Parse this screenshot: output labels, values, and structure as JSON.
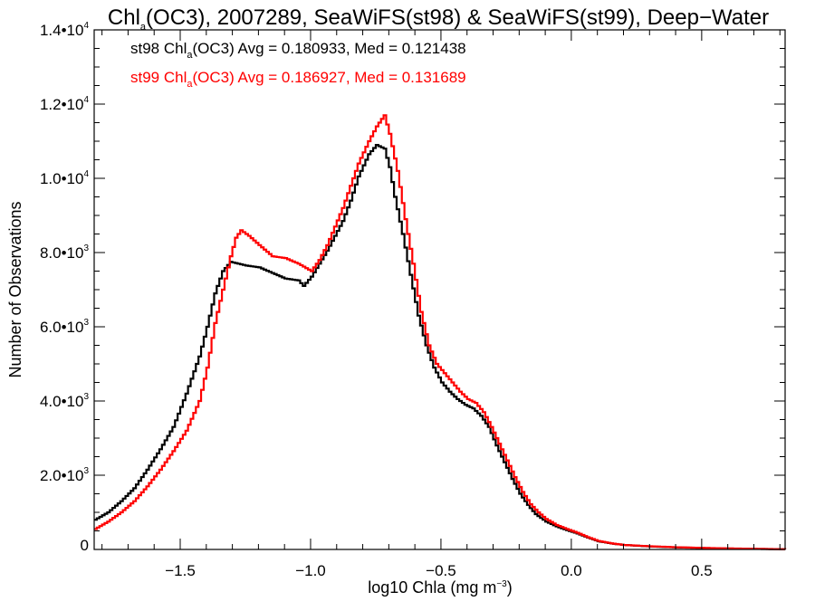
{
  "title": {
    "prefix": "Chl",
    "sub": "a",
    "rest": "(OC3), 2007289, SeaWiFS(st98) & SeaWiFS(st99), Deep−Water"
  },
  "colors": {
    "st98": "#000000",
    "st99": "#ff0000",
    "axis": "#000000",
    "background": "#ffffff"
  },
  "chart_data": {
    "type": "line",
    "step": true,
    "title": "Chla(OC3), 2007289, SeaWiFS(st98) & SeaWiFS(st99), Deep−Water",
    "xlabel": "log10 Chla (mg m⁻³)",
    "xlabel_parts": {
      "base": "log10 Chla (mg m",
      "sup": "−3",
      "close": ")"
    },
    "ylabel": "Number of Observations",
    "xlim": [
      -1.83,
      0.82
    ],
    "ylim": [
      0,
      14000
    ],
    "x_ticks": [
      {
        "value": -1.5,
        "label": "−1.5"
      },
      {
        "value": -1.0,
        "label": "−1.0"
      },
      {
        "value": -0.5,
        "label": "−0.5"
      },
      {
        "value": 0.0,
        "label": "0.0"
      },
      {
        "value": 0.5,
        "label": "0.5"
      }
    ],
    "x_minor_step": 0.1,
    "y_ticks": [
      {
        "value": 0,
        "mantissa": "0",
        "exp": ""
      },
      {
        "value": 2000,
        "mantissa": "2.0•10",
        "exp": "3"
      },
      {
        "value": 4000,
        "mantissa": "4.0•10",
        "exp": "3"
      },
      {
        "value": 6000,
        "mantissa": "6.0•10",
        "exp": "3"
      },
      {
        "value": 8000,
        "mantissa": "8.0•10",
        "exp": "3"
      },
      {
        "value": 10000,
        "mantissa": "1.0•10",
        "exp": "4"
      },
      {
        "value": 12000,
        "mantissa": "1.2•10",
        "exp": "4"
      },
      {
        "value": 14000,
        "mantissa": "1.4•10",
        "exp": "4"
      }
    ],
    "y_minor_step": 500,
    "grid": false,
    "series": [
      {
        "name": "st98",
        "color": "#000000",
        "label": {
          "pre": "st98 Chl",
          "sub": "a",
          "post": "(OC3) Avg = 0.180933, Med = 0.121438"
        },
        "avg": 0.180933,
        "median": 0.121438,
        "points": [
          [
            -1.83,
            800
          ],
          [
            -1.78,
            1000
          ],
          [
            -1.73,
            1300
          ],
          [
            -1.68,
            1650
          ],
          [
            -1.63,
            2150
          ],
          [
            -1.58,
            2700
          ],
          [
            -1.53,
            3300
          ],
          [
            -1.48,
            4200
          ],
          [
            -1.43,
            5200
          ],
          [
            -1.4,
            6000
          ],
          [
            -1.37,
            6900
          ],
          [
            -1.34,
            7500
          ],
          [
            -1.31,
            7750
          ],
          [
            -1.28,
            7700
          ],
          [
            -1.25,
            7650
          ],
          [
            -1.2,
            7600
          ],
          [
            -1.15,
            7450
          ],
          [
            -1.1,
            7300
          ],
          [
            -1.05,
            7250
          ],
          [
            -1.03,
            7100
          ],
          [
            -1.0,
            7350
          ],
          [
            -0.97,
            7700
          ],
          [
            -0.94,
            8050
          ],
          [
            -0.91,
            8450
          ],
          [
            -0.88,
            8850
          ],
          [
            -0.85,
            9400
          ],
          [
            -0.82,
            10050
          ],
          [
            -0.78,
            10650
          ],
          [
            -0.75,
            10900
          ],
          [
            -0.72,
            10800
          ],
          [
            -0.7,
            10300
          ],
          [
            -0.68,
            9500
          ],
          [
            -0.65,
            8500
          ],
          [
            -0.62,
            7400
          ],
          [
            -0.59,
            6300
          ],
          [
            -0.56,
            5500
          ],
          [
            -0.53,
            4900
          ],
          [
            -0.5,
            4500
          ],
          [
            -0.47,
            4250
          ],
          [
            -0.44,
            4050
          ],
          [
            -0.41,
            3900
          ],
          [
            -0.38,
            3800
          ],
          [
            -0.35,
            3600
          ],
          [
            -0.32,
            3300
          ],
          [
            -0.29,
            2800
          ],
          [
            -0.26,
            2350
          ],
          [
            -0.23,
            1900
          ],
          [
            -0.2,
            1500
          ],
          [
            -0.17,
            1200
          ],
          [
            -0.14,
            950
          ],
          [
            -0.1,
            750
          ],
          [
            -0.06,
            620
          ],
          [
            -0.02,
            520
          ],
          [
            0.02,
            430
          ],
          [
            0.06,
            320
          ],
          [
            0.1,
            220
          ],
          [
            0.15,
            160
          ],
          [
            0.2,
            120
          ],
          [
            0.3,
            80
          ],
          [
            0.4,
            55
          ],
          [
            0.5,
            40
          ],
          [
            0.6,
            25
          ],
          [
            0.7,
            15
          ],
          [
            0.82,
            5
          ]
        ]
      },
      {
        "name": "st99",
        "color": "#ff0000",
        "label": {
          "pre": "st99 Chl",
          "sub": "a",
          "post": "(OC3) Avg = 0.186927, Med = 0.131689"
        },
        "avg": 0.186927,
        "median": 0.131689,
        "points": [
          [
            -1.83,
            550
          ],
          [
            -1.78,
            750
          ],
          [
            -1.73,
            1000
          ],
          [
            -1.68,
            1300
          ],
          [
            -1.63,
            1700
          ],
          [
            -1.58,
            2150
          ],
          [
            -1.53,
            2650
          ],
          [
            -1.48,
            3200
          ],
          [
            -1.43,
            4000
          ],
          [
            -1.4,
            4900
          ],
          [
            -1.37,
            6100
          ],
          [
            -1.34,
            7000
          ],
          [
            -1.31,
            7900
          ],
          [
            -1.29,
            8400
          ],
          [
            -1.27,
            8600
          ],
          [
            -1.24,
            8450
          ],
          [
            -1.2,
            8200
          ],
          [
            -1.15,
            7900
          ],
          [
            -1.1,
            7850
          ],
          [
            -1.05,
            7700
          ],
          [
            -1.0,
            7500
          ],
          [
            -0.97,
            7800
          ],
          [
            -0.94,
            8200
          ],
          [
            -0.91,
            8700
          ],
          [
            -0.88,
            9200
          ],
          [
            -0.85,
            9800
          ],
          [
            -0.82,
            10400
          ],
          [
            -0.78,
            11000
          ],
          [
            -0.75,
            11400
          ],
          [
            -0.72,
            11700
          ],
          [
            -0.7,
            11200
          ],
          [
            -0.67,
            10200
          ],
          [
            -0.64,
            8900
          ],
          [
            -0.61,
            7700
          ],
          [
            -0.58,
            6400
          ],
          [
            -0.55,
            5500
          ],
          [
            -0.52,
            5000
          ],
          [
            -0.49,
            4750
          ],
          [
            -0.46,
            4500
          ],
          [
            -0.43,
            4250
          ],
          [
            -0.4,
            4050
          ],
          [
            -0.37,
            3950
          ],
          [
            -0.34,
            3700
          ],
          [
            -0.31,
            3300
          ],
          [
            -0.28,
            2850
          ],
          [
            -0.25,
            2400
          ],
          [
            -0.22,
            1950
          ],
          [
            -0.19,
            1550
          ],
          [
            -0.16,
            1220
          ],
          [
            -0.13,
            1000
          ],
          [
            -0.1,
            820
          ],
          [
            -0.06,
            660
          ],
          [
            -0.02,
            550
          ],
          [
            0.02,
            450
          ],
          [
            0.06,
            330
          ],
          [
            0.1,
            230
          ],
          [
            0.15,
            165
          ],
          [
            0.2,
            120
          ],
          [
            0.3,
            85
          ],
          [
            0.4,
            60
          ],
          [
            0.5,
            42
          ],
          [
            0.6,
            28
          ],
          [
            0.7,
            18
          ],
          [
            0.82,
            5
          ]
        ]
      }
    ]
  }
}
